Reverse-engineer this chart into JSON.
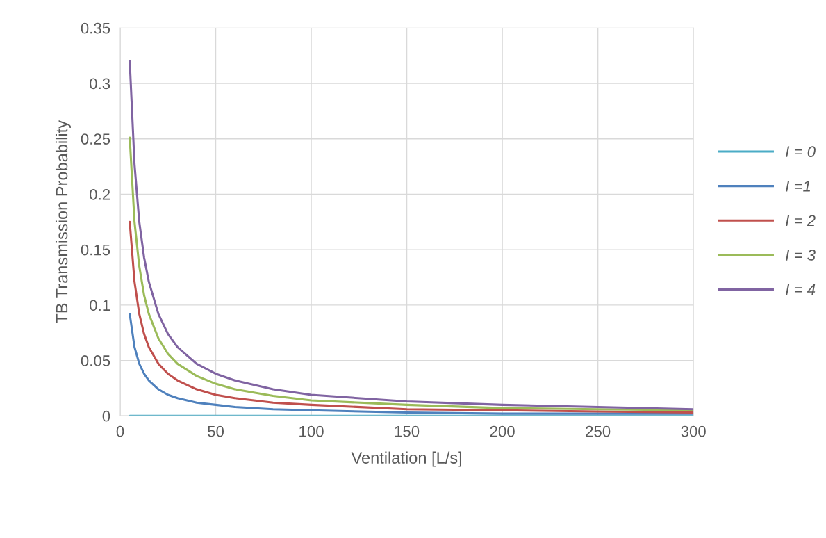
{
  "chart_data": {
    "type": "line",
    "xlabel": "Ventilation [L/s]",
    "ylabel": "TB Transmission Probability",
    "x": [
      5,
      7.5,
      10,
      12.5,
      15,
      20,
      25,
      30,
      40,
      50,
      60,
      80,
      100,
      150,
      200,
      250,
      300
    ],
    "series": [
      {
        "name": "I = 0",
        "color": "#4bacc6",
        "values": [
          0,
          0,
          0,
          0,
          0,
          0,
          0,
          0,
          0,
          0,
          0,
          0,
          0,
          0,
          0,
          0,
          0
        ]
      },
      {
        "name": "I =1",
        "color": "#4f81bd",
        "values": [
          0.092,
          0.062,
          0.047,
          0.038,
          0.032,
          0.024,
          0.019,
          0.016,
          0.012,
          0.01,
          0.008,
          0.006,
          0.005,
          0.003,
          0.002,
          0.002,
          0.002
        ]
      },
      {
        "name": "I = 2",
        "color": "#c0504d",
        "values": [
          0.175,
          0.121,
          0.092,
          0.074,
          0.062,
          0.047,
          0.038,
          0.032,
          0.024,
          0.019,
          0.016,
          0.012,
          0.01,
          0.006,
          0.005,
          0.004,
          0.003
        ]
      },
      {
        "name": "I = 3",
        "color": "#9bbb59",
        "values": [
          0.251,
          0.175,
          0.135,
          0.109,
          0.092,
          0.07,
          0.056,
          0.047,
          0.036,
          0.029,
          0.024,
          0.018,
          0.014,
          0.01,
          0.007,
          0.006,
          0.005
        ]
      },
      {
        "name": "I = 4",
        "color": "#8064a2",
        "values": [
          0.32,
          0.227,
          0.175,
          0.143,
          0.121,
          0.092,
          0.074,
          0.062,
          0.047,
          0.038,
          0.032,
          0.024,
          0.019,
          0.013,
          0.01,
          0.008,
          0.006
        ]
      }
    ],
    "xlim": [
      0,
      300
    ],
    "xticks": [
      0,
      50,
      100,
      150,
      200,
      250,
      300
    ],
    "ylim": [
      0,
      0.35
    ],
    "yticks": [
      0,
      0.05,
      0.1,
      0.15,
      0.2,
      0.25,
      0.3,
      0.35
    ],
    "grid": true,
    "legend": "right",
    "marker": "none",
    "line_style": "solid"
  }
}
